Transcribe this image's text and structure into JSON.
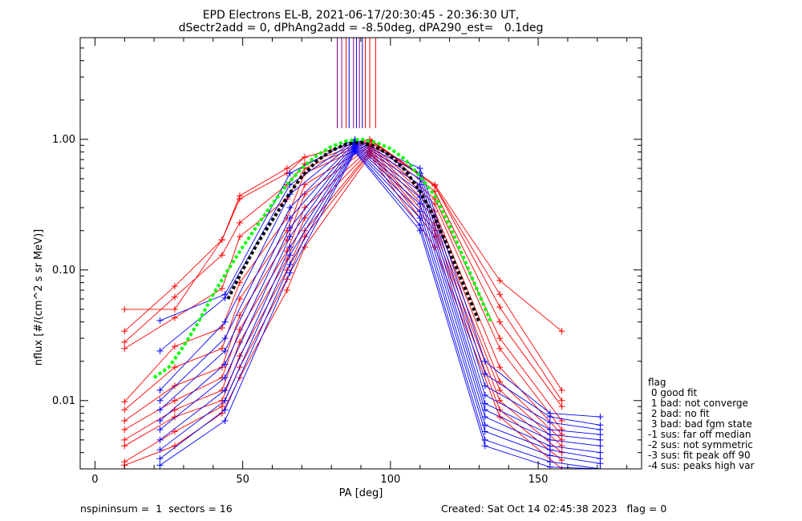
{
  "header": {
    "title_line1": "EPD Electrons EL-B, 2021-06-17/20:30:45 - 20:36:30 UT,",
    "title_line2": "dSectr2add = 0, dPhAng2add = -8.50deg, dPA290_est=   0.1deg"
  },
  "footer": {
    "left": "nspininsum =  1  sectors = 16",
    "right": "Created: Sat Oct 14 02:45:38 2023   flag = 0"
  },
  "flag_legend": {
    "title": "flag",
    "entries": [
      " 0 good fit",
      " 1 bad: not converge",
      " 2 bad: no fit",
      " 3 bad: bad fgm state",
      "-1 sus: far off median",
      "-2 sus: not symmetric",
      "-3 sus: fit peak off 90",
      "-4 sus: peaks high var"
    ]
  },
  "colors": {
    "red_series": "#ff0000",
    "blue_series": "#0000ff",
    "green_fit": "#00ff00",
    "black_fit": "#000000",
    "purple_lines": "#800080"
  },
  "chart_data": {
    "type": "line",
    "title": "EPD Electrons EL-B, 2021-06-17/20:30:45 - 20:36:30 UT,",
    "subtitle": "dSectr2add = 0, dPhAng2add = -8.50deg, dPA290_est=   0.1deg",
    "xlabel": "PA [deg]",
    "ylabel": "nflux [#/(cm^2 s sr MeV)]",
    "xlim": [
      -5,
      185
    ],
    "ylim": [
      0.003,
      6
    ],
    "yscale": "log",
    "x_ticks": [
      "0",
      "50",
      "100",
      "150"
    ],
    "y_ticks": [
      "0.01",
      "0.10",
      "1.00"
    ],
    "grid": false,
    "series": [
      {
        "color": "red",
        "points": [
          [
            10,
            0.05
          ],
          [
            27,
            0.05
          ],
          [
            43,
            0.17
          ],
          [
            49,
            0.37
          ],
          [
            65,
            0.6
          ],
          [
            71,
            0.73
          ],
          [
            93,
            1.0
          ],
          [
            115,
            0.45
          ],
          [
            137,
            0.083
          ],
          [
            158,
            0.034
          ]
        ]
      },
      {
        "color": "red",
        "points": [
          [
            10,
            0.034
          ],
          [
            27,
            0.075
          ],
          [
            43,
            0.17
          ],
          [
            49,
            0.35
          ],
          [
            65,
            0.55
          ],
          [
            71,
            0.73
          ],
          [
            93,
            1.0
          ],
          [
            115,
            0.44
          ],
          [
            137,
            0.065
          ],
          [
            158,
            0.012
          ]
        ]
      },
      {
        "color": "red",
        "points": [
          [
            10,
            0.028
          ],
          [
            27,
            0.062
          ],
          [
            43,
            0.13
          ],
          [
            49,
            0.23
          ],
          [
            65,
            0.45
          ],
          [
            71,
            0.65
          ],
          [
            93,
            0.98
          ],
          [
            115,
            0.44
          ],
          [
            137,
            0.052
          ],
          [
            158,
            0.01
          ]
        ]
      },
      {
        "color": "red",
        "points": [
          [
            10,
            0.025
          ],
          [
            27,
            0.043
          ],
          [
            43,
            0.072
          ],
          [
            49,
            0.18
          ],
          [
            65,
            0.35
          ],
          [
            71,
            0.6
          ],
          [
            93,
            0.96
          ],
          [
            115,
            0.4
          ],
          [
            137,
            0.04
          ],
          [
            158,
            0.009
          ]
        ]
      },
      {
        "color": "red",
        "points": [
          [
            10,
            0.0098
          ],
          [
            27,
            0.026
          ],
          [
            43,
            0.036
          ],
          [
            49,
            0.08
          ],
          [
            65,
            0.25
          ],
          [
            71,
            0.55
          ],
          [
            93,
            0.92
          ],
          [
            115,
            0.35
          ],
          [
            137,
            0.03
          ],
          [
            158,
            0.007
          ]
        ]
      },
      {
        "color": "red",
        "points": [
          [
            10,
            0.0085
          ],
          [
            27,
            0.018
          ],
          [
            43,
            0.025
          ],
          [
            49,
            0.06
          ],
          [
            65,
            0.2
          ],
          [
            71,
            0.45
          ],
          [
            93,
            0.9
          ],
          [
            115,
            0.32
          ],
          [
            137,
            0.025
          ],
          [
            158,
            0.006
          ]
        ]
      },
      {
        "color": "red",
        "points": [
          [
            10,
            0.007
          ],
          [
            27,
            0.013
          ],
          [
            43,
            0.018
          ],
          [
            49,
            0.045
          ],
          [
            65,
            0.17
          ],
          [
            71,
            0.38
          ],
          [
            93,
            0.88
          ],
          [
            115,
            0.28
          ],
          [
            137,
            0.018
          ],
          [
            158,
            0.0055
          ]
        ]
      },
      {
        "color": "red",
        "points": [
          [
            10,
            0.006
          ],
          [
            27,
            0.01
          ],
          [
            43,
            0.015
          ],
          [
            49,
            0.035
          ],
          [
            65,
            0.14
          ],
          [
            71,
            0.3
          ],
          [
            93,
            0.85
          ],
          [
            115,
            0.25
          ],
          [
            137,
            0.014
          ],
          [
            158,
            0.005
          ]
        ]
      },
      {
        "color": "red",
        "points": [
          [
            10,
            0.005
          ],
          [
            27,
            0.0085
          ],
          [
            43,
            0.012
          ],
          [
            49,
            0.028
          ],
          [
            65,
            0.12
          ],
          [
            71,
            0.25
          ],
          [
            93,
            0.82
          ],
          [
            115,
            0.22
          ],
          [
            137,
            0.012
          ],
          [
            158,
            0.0045
          ]
        ]
      },
      {
        "color": "red",
        "points": [
          [
            10,
            0.0045
          ],
          [
            27,
            0.0075
          ],
          [
            43,
            0.01
          ],
          [
            49,
            0.022
          ],
          [
            65,
            0.1
          ],
          [
            71,
            0.2
          ],
          [
            93,
            0.8
          ],
          [
            115,
            0.2
          ],
          [
            137,
            0.01
          ],
          [
            158,
            0.004
          ]
        ]
      },
      {
        "color": "red",
        "points": [
          [
            10,
            0.0034
          ],
          [
            27,
            0.0058
          ],
          [
            43,
            0.009
          ],
          [
            49,
            0.018
          ],
          [
            65,
            0.085
          ],
          [
            71,
            0.18
          ],
          [
            93,
            0.78
          ],
          [
            115,
            0.18
          ],
          [
            137,
            0.0085
          ],
          [
            158,
            0.0035
          ]
        ]
      },
      {
        "color": "red",
        "points": [
          [
            10,
            0.0032
          ],
          [
            27,
            0.0045
          ],
          [
            43,
            0.008
          ],
          [
            49,
            0.015
          ],
          [
            65,
            0.07
          ],
          [
            71,
            0.15
          ],
          [
            93,
            0.75
          ],
          [
            115,
            0.15
          ],
          [
            137,
            0.0075
          ],
          [
            158,
            0.003
          ]
        ]
      },
      {
        "color": "blue",
        "points": [
          [
            22,
            0.041
          ],
          [
            44,
            0.065
          ],
          [
            66,
            0.55
          ],
          [
            88,
            1.0
          ],
          [
            110,
            0.6
          ],
          [
            132,
            0.02
          ],
          [
            154,
            0.008
          ],
          [
            171,
            0.0075
          ]
        ]
      },
      {
        "color": "blue",
        "points": [
          [
            22,
            0.024
          ],
          [
            44,
            0.061
          ],
          [
            66,
            0.45
          ],
          [
            88,
            0.98
          ],
          [
            110,
            0.55
          ],
          [
            132,
            0.016
          ],
          [
            154,
            0.0075
          ],
          [
            171,
            0.0065
          ]
        ]
      },
      {
        "color": "blue",
        "points": [
          [
            22,
            0.012
          ],
          [
            44,
            0.04
          ],
          [
            66,
            0.38
          ],
          [
            88,
            0.96
          ],
          [
            110,
            0.5
          ],
          [
            132,
            0.013
          ],
          [
            154,
            0.0068
          ],
          [
            171,
            0.006
          ]
        ]
      },
      {
        "color": "blue",
        "points": [
          [
            22,
            0.01
          ],
          [
            44,
            0.03
          ],
          [
            66,
            0.3
          ],
          [
            88,
            0.94
          ],
          [
            110,
            0.45
          ],
          [
            132,
            0.011
          ],
          [
            154,
            0.006
          ],
          [
            171,
            0.0055
          ]
        ]
      },
      {
        "color": "blue",
        "points": [
          [
            22,
            0.0085
          ],
          [
            44,
            0.024
          ],
          [
            66,
            0.25
          ],
          [
            88,
            0.92
          ],
          [
            110,
            0.4
          ],
          [
            132,
            0.0095
          ],
          [
            154,
            0.0055
          ],
          [
            171,
            0.005
          ]
        ]
      },
      {
        "color": "blue",
        "points": [
          [
            22,
            0.007
          ],
          [
            44,
            0.019
          ],
          [
            66,
            0.21
          ],
          [
            88,
            0.9
          ],
          [
            110,
            0.36
          ],
          [
            132,
            0.0085
          ],
          [
            154,
            0.005
          ],
          [
            171,
            0.0045
          ]
        ]
      },
      {
        "color": "blue",
        "points": [
          [
            22,
            0.006
          ],
          [
            44,
            0.015
          ],
          [
            66,
            0.18
          ],
          [
            88,
            0.88
          ],
          [
            110,
            0.32
          ],
          [
            132,
            0.0075
          ],
          [
            154,
            0.0045
          ],
          [
            171,
            0.004
          ]
        ]
      },
      {
        "color": "blue",
        "points": [
          [
            22,
            0.005
          ],
          [
            44,
            0.012
          ],
          [
            66,
            0.15
          ],
          [
            88,
            0.86
          ],
          [
            110,
            0.28
          ],
          [
            132,
            0.0065
          ],
          [
            154,
            0.0042
          ],
          [
            171,
            0.0036
          ]
        ]
      },
      {
        "color": "blue",
        "points": [
          [
            22,
            0.0042
          ],
          [
            44,
            0.01
          ],
          [
            66,
            0.13
          ],
          [
            88,
            0.84
          ],
          [
            110,
            0.25
          ],
          [
            132,
            0.0058
          ],
          [
            154,
            0.0038
          ],
          [
            171,
            0.0033
          ]
        ]
      },
      {
        "color": "blue",
        "points": [
          [
            22,
            0.0036
          ],
          [
            44,
            0.0085
          ],
          [
            66,
            0.11
          ],
          [
            88,
            0.82
          ],
          [
            110,
            0.22
          ],
          [
            132,
            0.005
          ],
          [
            154,
            0.0034
          ],
          [
            171,
            0.003
          ]
        ]
      },
      {
        "color": "blue",
        "points": [
          [
            22,
            0.0032
          ],
          [
            44,
            0.007
          ],
          [
            66,
            0.095
          ],
          [
            88,
            0.8
          ],
          [
            110,
            0.2
          ],
          [
            132,
            0.0045
          ],
          [
            154,
            0.0031
          ],
          [
            171,
            0.003
          ]
        ]
      }
    ],
    "fit_curves": [
      {
        "color": "green",
        "style": "dashed",
        "points": [
          [
            20,
            0.015
          ],
          [
            25,
            0.018
          ],
          [
            30,
            0.026
          ],
          [
            35,
            0.04
          ],
          [
            40,
            0.065
          ],
          [
            45,
            0.1
          ],
          [
            50,
            0.15
          ],
          [
            55,
            0.22
          ],
          [
            60,
            0.32
          ],
          [
            65,
            0.45
          ],
          [
            70,
            0.6
          ],
          [
            75,
            0.75
          ],
          [
            80,
            0.88
          ],
          [
            85,
            0.97
          ],
          [
            90,
            1.0
          ],
          [
            95,
            0.95
          ],
          [
            100,
            0.85
          ],
          [
            105,
            0.7
          ],
          [
            110,
            0.52
          ],
          [
            115,
            0.37
          ],
          [
            120,
            0.22
          ],
          [
            125,
            0.12
          ],
          [
            130,
            0.065
          ],
          [
            134,
            0.04
          ]
        ]
      },
      {
        "color": "black",
        "style": "dashed",
        "points": [
          [
            45,
            0.06
          ],
          [
            50,
            0.1
          ],
          [
            55,
            0.16
          ],
          [
            60,
            0.24
          ],
          [
            65,
            0.36
          ],
          [
            70,
            0.52
          ],
          [
            75,
            0.68
          ],
          [
            80,
            0.82
          ],
          [
            85,
            0.92
          ],
          [
            90,
            0.95
          ],
          [
            95,
            0.88
          ],
          [
            100,
            0.75
          ],
          [
            105,
            0.58
          ],
          [
            110,
            0.4
          ],
          [
            115,
            0.25
          ],
          [
            120,
            0.14
          ],
          [
            125,
            0.075
          ],
          [
            130,
            0.04
          ]
        ]
      }
    ],
    "vertical_markers": [
      {
        "x": 82,
        "color": "purple"
      },
      {
        "x": 83.5,
        "color": "purple"
      },
      {
        "x": 85,
        "color": "red"
      },
      {
        "x": 86,
        "color": "blue"
      },
      {
        "x": 87.5,
        "color": "purple"
      },
      {
        "x": 88.5,
        "color": "blue"
      },
      {
        "x": 89.5,
        "color": "purple"
      },
      {
        "x": 90.5,
        "color": "blue"
      },
      {
        "x": 91.5,
        "color": "red"
      },
      {
        "x": 93,
        "color": "red"
      },
      {
        "x": 95,
        "color": "red"
      }
    ]
  }
}
